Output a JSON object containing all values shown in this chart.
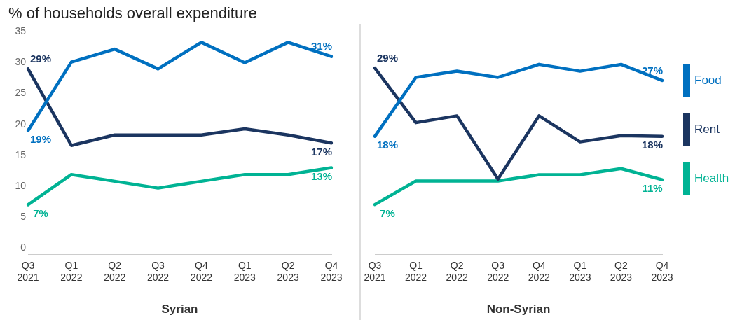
{
  "chart_data": [
    {
      "type": "line",
      "subtitle": "% of households overall expenditure",
      "xlabel": "Syrian",
      "categories": [
        "Q3 2021",
        "Q1 2022",
        "Q2 2022",
        "Q3 2022",
        "Q4 2022",
        "Q1 2023",
        "Q2 2023",
        "Q4 2023"
      ],
      "ylim": [
        -1,
        35
      ],
      "yticks": [
        0,
        5,
        10,
        15,
        20,
        25,
        30,
        35
      ],
      "grid": false,
      "legend": false,
      "marker": "none",
      "line_style": "solid",
      "series": [
        {
          "color": "#0070c0",
          "values": [
            19,
            30.1,
            32.2,
            29.0,
            33.3,
            30.0,
            33.3,
            31
          ],
          "value_labels": [
            "19%",
            null,
            null,
            null,
            null,
            null,
            null,
            "31%"
          ]
        },
        {
          "color": "#1b3560",
          "values": [
            29,
            16.6,
            18.3,
            18.3,
            18.3,
            19.3,
            18.3,
            17
          ],
          "value_labels": [
            "29%",
            null,
            null,
            null,
            null,
            null,
            null,
            "17%"
          ]
        },
        {
          "color": "#00b394",
          "values": [
            7,
            11.9,
            10.8,
            9.7,
            10.8,
            11.9,
            11.9,
            13
          ],
          "value_labels": [
            "7%",
            null,
            null,
            null,
            null,
            null,
            null,
            "13%"
          ]
        }
      ]
    },
    {
      "type": "line",
      "xlabel": "Non-Syrian",
      "categories": [
        "Q3 2021",
        "Q1 2022",
        "Q2 2022",
        "Q3 2022",
        "Q4 2022",
        "Q1 2023",
        "Q2 2023",
        "Q4 2023"
      ],
      "ylim": [
        -1,
        35
      ],
      "yticks": [
        0,
        5,
        10,
        15,
        20,
        25,
        30,
        35
      ],
      "tick_labels": "x",
      "grid": false,
      "legend": "right",
      "marker": "none",
      "line_style": "solid",
      "series": [
        {
          "name": "Food",
          "color": "#0070c0",
          "values": [
            18,
            27.5,
            28.5,
            27.5,
            29.6,
            28.5,
            29.6,
            27
          ],
          "value_labels": [
            "18%",
            null,
            null,
            null,
            null,
            null,
            null,
            "27%"
          ]
        },
        {
          "name": "Rent",
          "color": "#1b3560",
          "values": [
            29,
            20.2,
            21.3,
            11.1,
            21.3,
            17.1,
            18.1,
            18
          ],
          "value_labels": [
            "29%",
            null,
            null,
            null,
            null,
            null,
            null,
            "18%"
          ]
        },
        {
          "name": "Health",
          "color": "#00b394",
          "values": [
            7,
            10.8,
            10.8,
            10.8,
            11.8,
            11.8,
            12.8,
            11
          ],
          "value_labels": [
            "7%",
            null,
            null,
            null,
            null,
            null,
            null,
            "11%"
          ]
        }
      ]
    }
  ]
}
